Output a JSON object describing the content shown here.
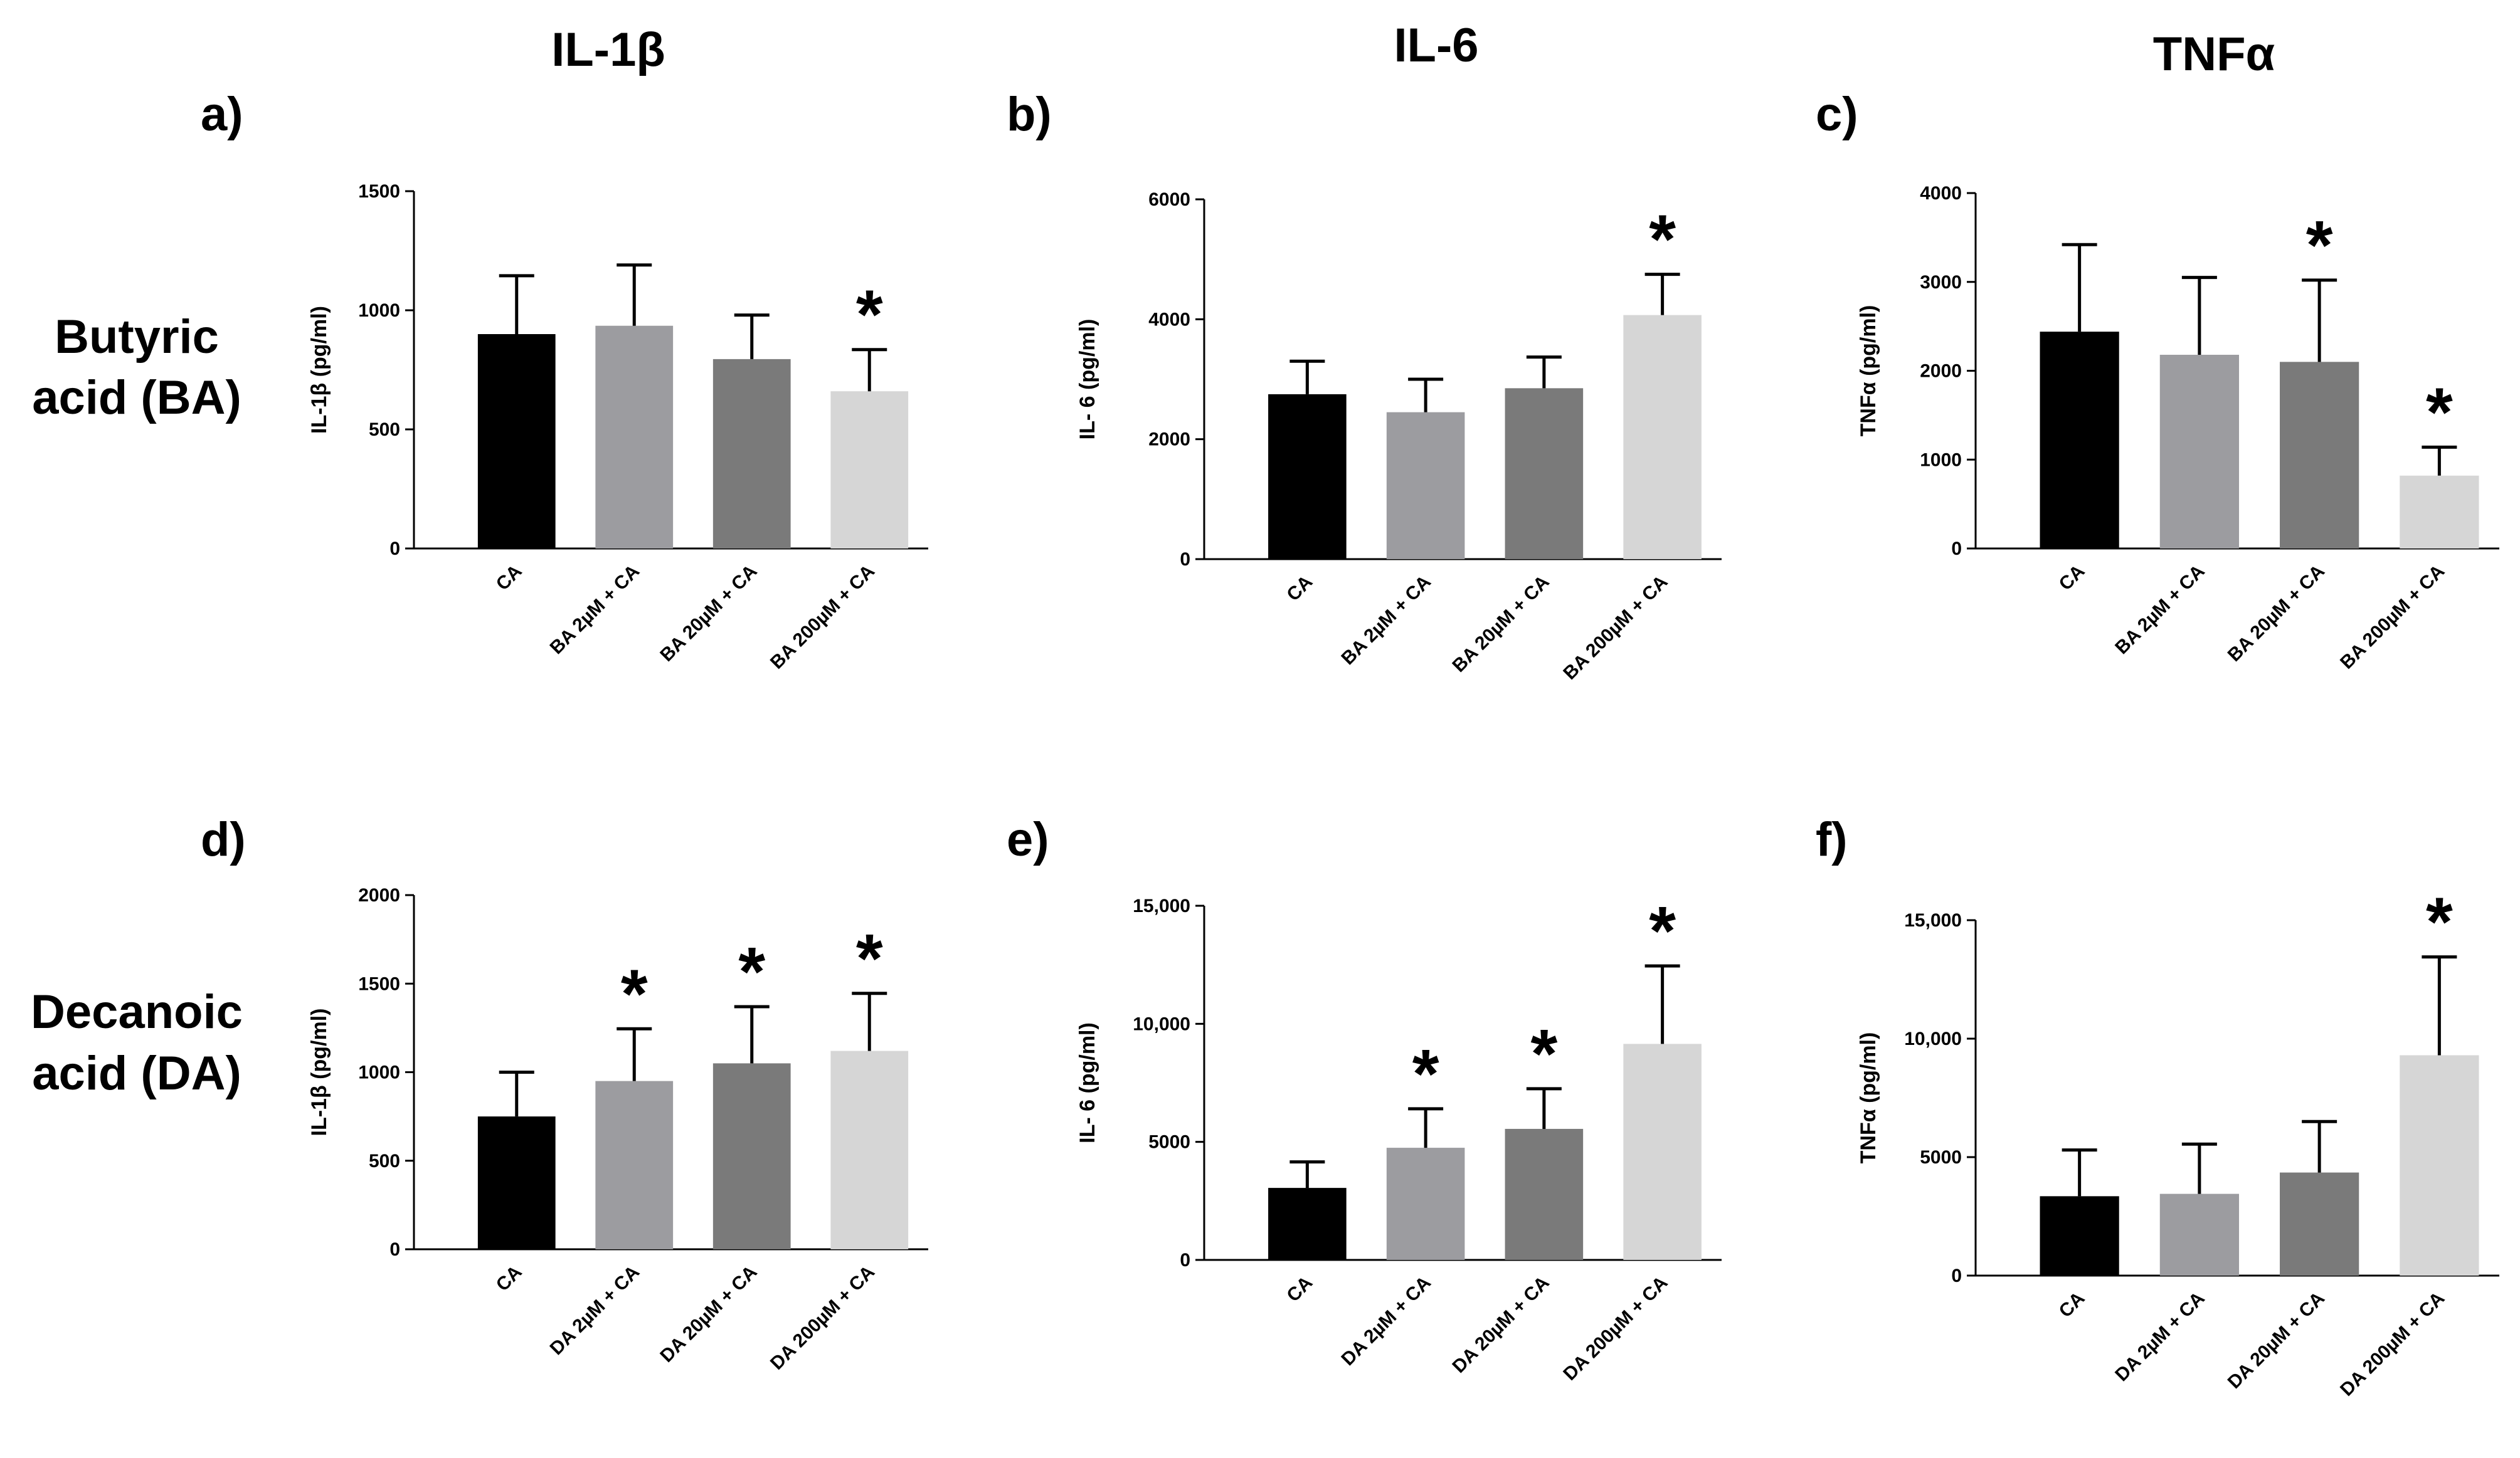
{
  "columns": [
    "IL-1β",
    "IL-6",
    "TNFα"
  ],
  "rows": {
    "ba": [
      "Butyric",
      "acid (BA)"
    ],
    "da": [
      "Decanoic",
      "acid (DA)"
    ]
  },
  "colors": {
    "CA": "#000000",
    "low": "#9c9ca0",
    "mid": "#7a7a7a",
    "high": "#d6d6d6"
  },
  "chart_data": [
    {
      "type": "bar",
      "panel": "a)",
      "ylabel": "IL-1β (pg/ml)",
      "ylim": [
        0,
        1500
      ],
      "yticks": [
        "0",
        "500",
        "1000",
        "1500"
      ],
      "ytick_values": [
        0,
        500,
        1000,
        1500
      ],
      "categories": [
        "CA",
        "BA 2µM + CA",
        "BA 20µM + CA",
        "BA 200µM + CA"
      ],
      "values": [
        900,
        935,
        795,
        660
      ],
      "errors": [
        245,
        255,
        185,
        175
      ],
      "significant": [
        false,
        false,
        false,
        true
      ]
    },
    {
      "type": "bar",
      "panel": "b)",
      "ylabel": "IL- 6 (pg/ml)",
      "ylim": [
        0,
        6000
      ],
      "yticks": [
        "0",
        "2000",
        "4000",
        "6000"
      ],
      "ytick_values": [
        0,
        2000,
        4000,
        6000
      ],
      "categories": [
        "CA",
        "BA 2µM + CA",
        "BA 20µM + CA",
        "BA 200µM + CA"
      ],
      "values": [
        2750,
        2450,
        2850,
        4070
      ],
      "errors": [
        550,
        550,
        520,
        680
      ],
      "significant": [
        false,
        false,
        false,
        true
      ]
    },
    {
      "type": "bar",
      "panel": "c)",
      "ylabel": "TNFα (pg/ml)",
      "ylim": [
        0,
        4000
      ],
      "yticks": [
        "0",
        "1000",
        "2000",
        "3000",
        "4000"
      ],
      "ytick_values": [
        0,
        1000,
        2000,
        3000,
        4000
      ],
      "categories": [
        "CA",
        "BA 2µM + CA",
        "BA 20µM + CA",
        "BA 200µM + CA"
      ],
      "values": [
        2440,
        2180,
        2100,
        820
      ],
      "errors": [
        980,
        870,
        920,
        320
      ],
      "significant": [
        false,
        false,
        true,
        true
      ]
    },
    {
      "type": "bar",
      "panel": "d)",
      "ylabel": "IL-1β (pg/ml)",
      "ylim": [
        0,
        2000
      ],
      "yticks": [
        "0",
        "500",
        "1000",
        "1500",
        "2000"
      ],
      "ytick_values": [
        0,
        500,
        1000,
        1500,
        2000
      ],
      "categories": [
        "CA",
        "DA 2µM + CA",
        "DA 20µM + CA",
        "DA 200µM + CA"
      ],
      "values": [
        750,
        950,
        1050,
        1120
      ],
      "errors": [
        250,
        295,
        320,
        325
      ],
      "significant": [
        false,
        true,
        true,
        true
      ]
    },
    {
      "type": "bar",
      "panel": "e)",
      "ylabel": "IL- 6 (pg/ml)",
      "ylim": [
        0,
        15000
      ],
      "yticks": [
        "0",
        "5000",
        "10,000",
        "15,000"
      ],
      "ytick_values": [
        0,
        5000,
        10000,
        15000
      ],
      "categories": [
        "CA",
        "DA 2µM + CA",
        "DA 20µM + CA",
        "DA 200µM + CA"
      ],
      "values": [
        3050,
        4750,
        5550,
        9150
      ],
      "errors": [
        1100,
        1650,
        1700,
        3300
      ],
      "significant": [
        false,
        true,
        true,
        true
      ]
    },
    {
      "type": "bar",
      "panel": "f)",
      "ylabel": "TNFα (pg/ml)",
      "ylim": [
        0,
        15000
      ],
      "yticks": [
        "0",
        "5000",
        "10,000",
        "15,000"
      ],
      "ytick_values": [
        0,
        5000,
        10000,
        15000
      ],
      "categories": [
        "CA",
        "DA 2µM + CA",
        "DA 20µM + CA",
        "DA 200µM + CA"
      ],
      "values": [
        3350,
        3450,
        4350,
        9300
      ],
      "errors": [
        1950,
        2100,
        2150,
        4150
      ],
      "significant": [
        false,
        false,
        false,
        true
      ]
    }
  ],
  "significance_marker": "*"
}
